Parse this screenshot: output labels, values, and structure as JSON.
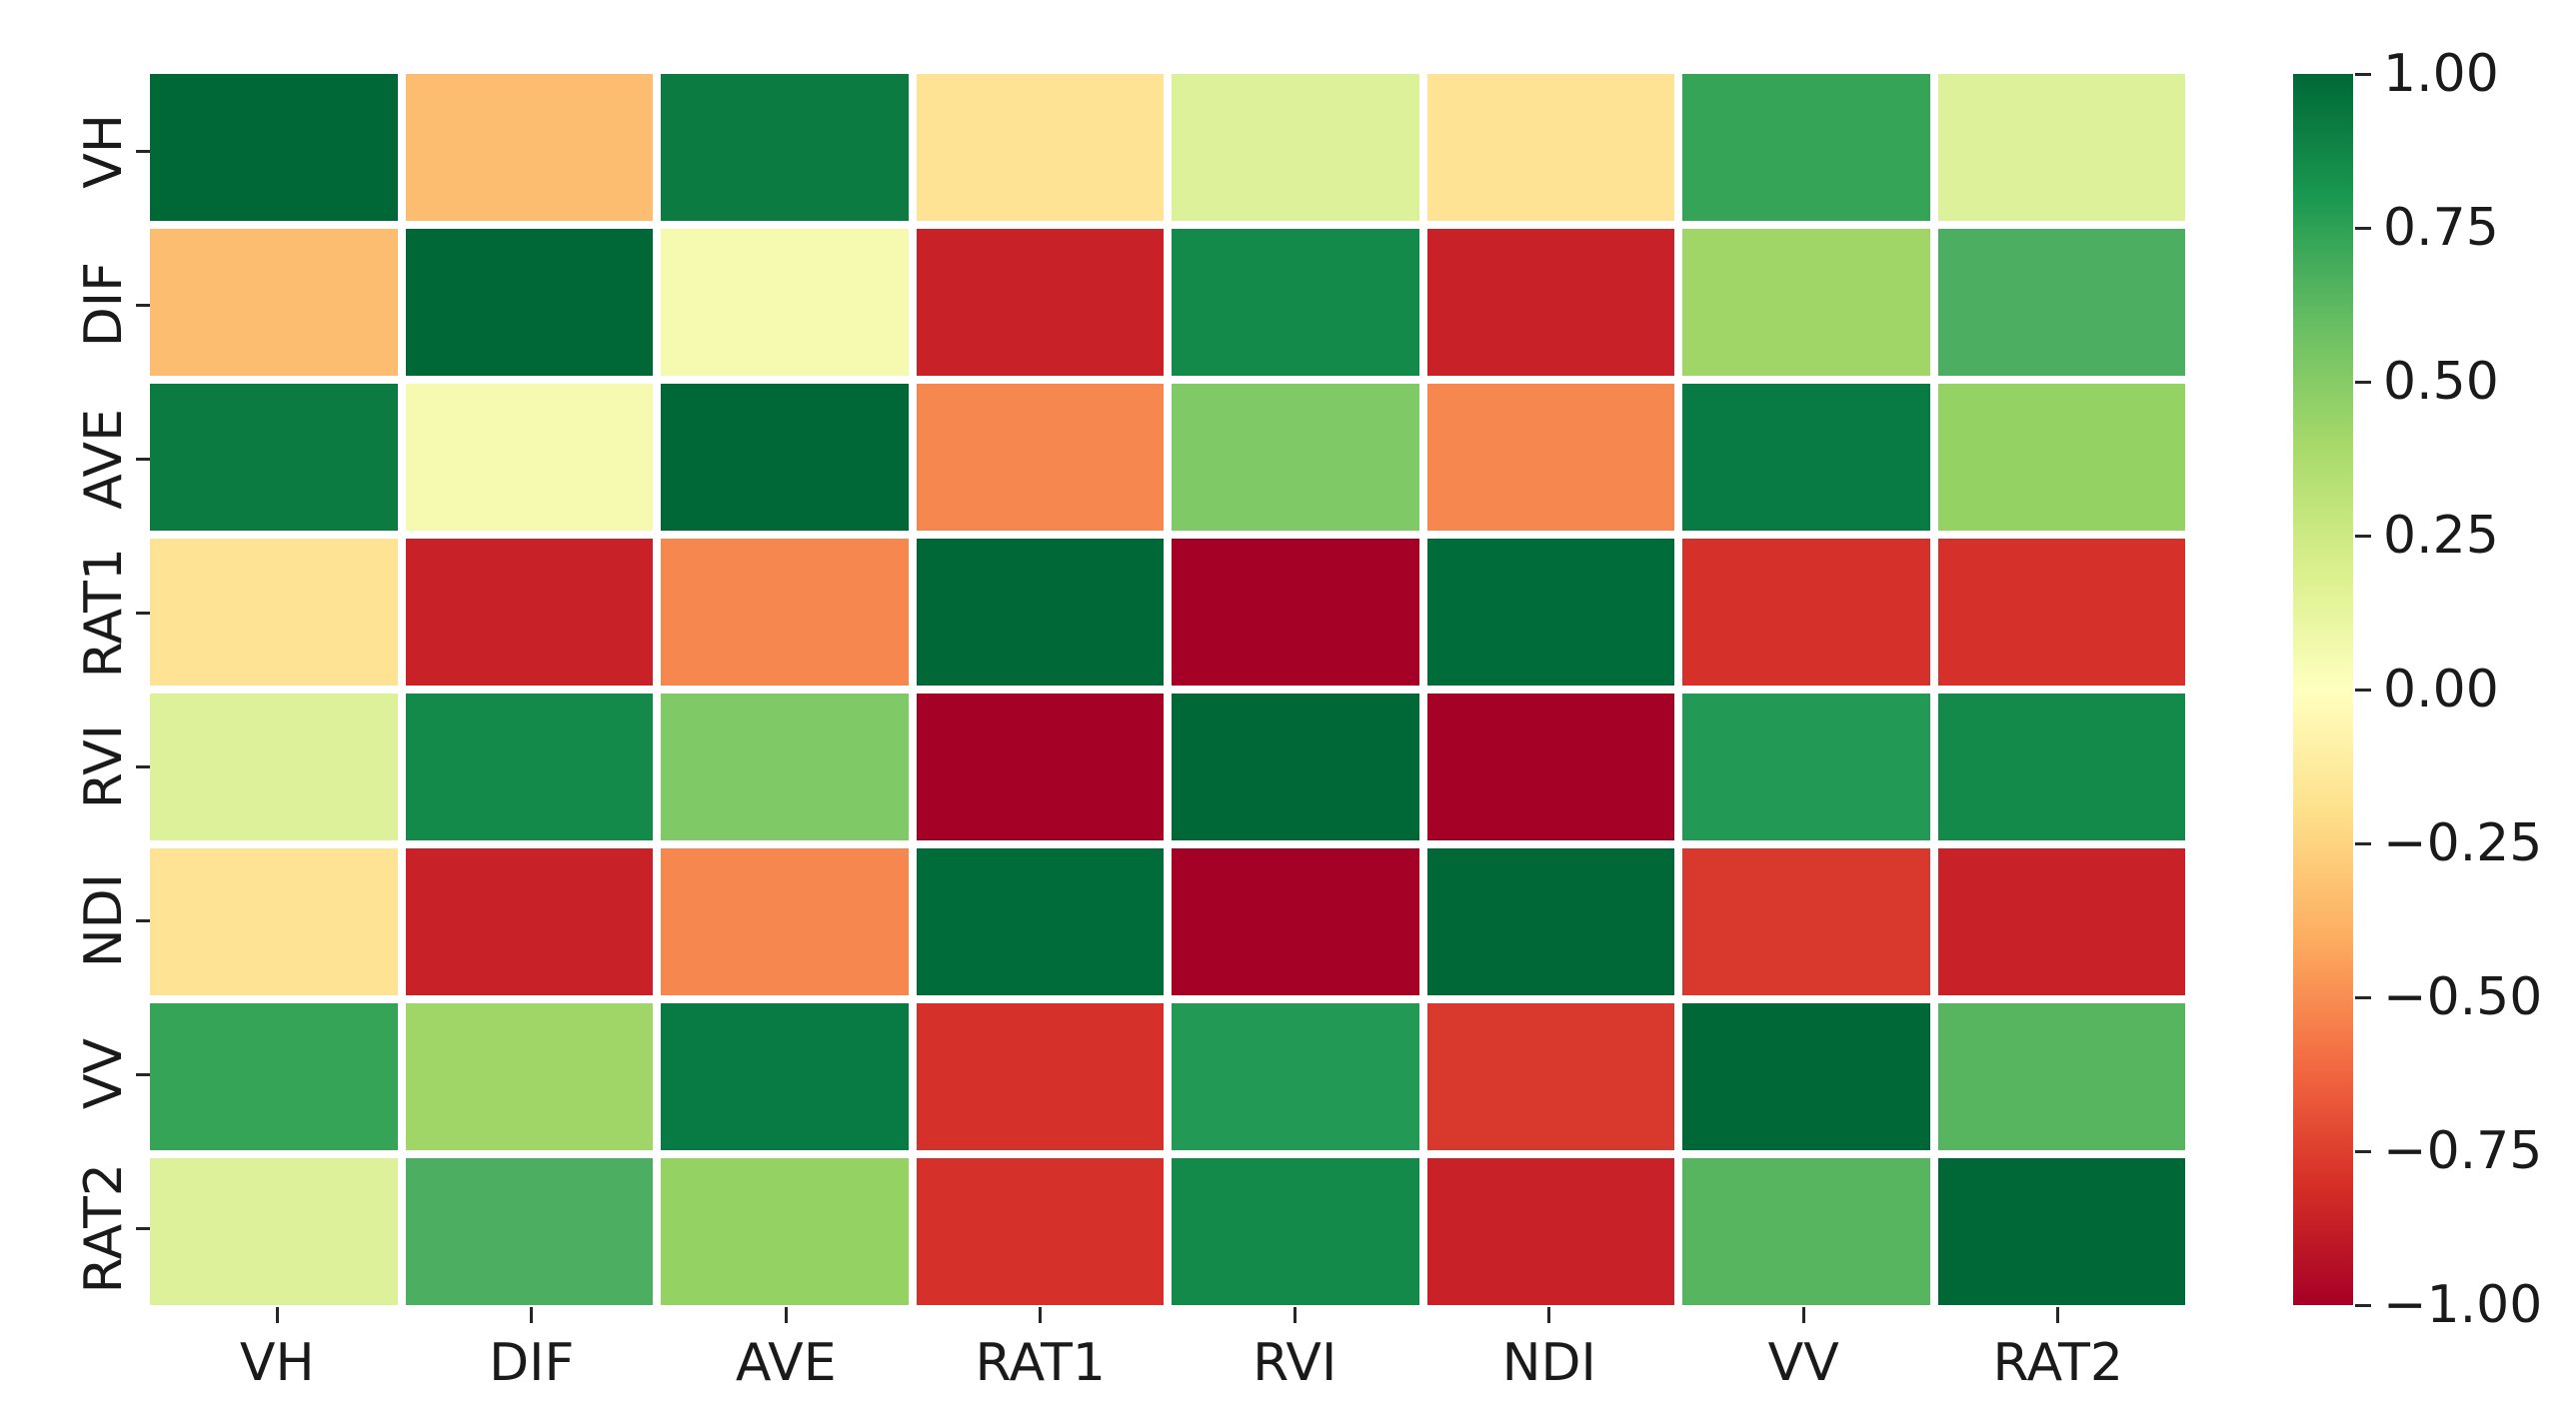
{
  "figure": {
    "background_color": "#ffffff",
    "text_color": "#1a1a1a",
    "tick_color": "#262626"
  },
  "chart_data": {
    "type": "heatmap",
    "title": "",
    "xlabel": "",
    "ylabel": "",
    "colormap": "RdYlGn",
    "grid": false,
    "legend_position": "colorbar-right",
    "categories": [
      "VH",
      "DIF",
      "AVE",
      "RAT1",
      "RVI",
      "NDI",
      "VV",
      "RAT2"
    ],
    "x_tick_labels": [
      "VH",
      "DIF",
      "AVE",
      "RAT1",
      "RVI",
      "NDI",
      "VV",
      "RAT2"
    ],
    "y_tick_labels": [
      "VH",
      "DIF",
      "AVE",
      "RAT1",
      "RVI",
      "NDI",
      "VV",
      "RAT2"
    ],
    "matrix": [
      [
        1.0,
        -0.35,
        0.9,
        -0.17,
        0.18,
        -0.17,
        0.7,
        0.2
      ],
      [
        -0.35,
        1.0,
        0.05,
        -0.85,
        0.85,
        -0.85,
        0.4,
        0.65
      ],
      [
        0.9,
        0.05,
        1.0,
        -0.5,
        0.5,
        -0.5,
        0.93,
        0.45
      ],
      [
        -0.17,
        -0.85,
        -0.5,
        1.0,
        -0.98,
        0.97,
        -0.8,
        -0.8
      ],
      [
        0.18,
        0.85,
        0.5,
        -0.98,
        1.0,
        -0.98,
        0.75,
        0.85
      ],
      [
        -0.17,
        -0.85,
        -0.5,
        0.97,
        -0.98,
        1.0,
        -0.73,
        -0.85
      ],
      [
        0.7,
        0.4,
        0.93,
        -0.8,
        0.75,
        -0.73,
        1.0,
        0.62
      ],
      [
        0.2,
        0.65,
        0.45,
        -0.8,
        0.85,
        -0.85,
        0.62,
        1.0
      ]
    ],
    "cell_colors": [
      [
        "#006837",
        "#fdbd71",
        "#0b7b41",
        "#fde393",
        "#ddf09a",
        "#fde393",
        "#35a456",
        "#ddf09a"
      ],
      [
        "#fdbd71",
        "#006837",
        "#f5fab0",
        "#c82127",
        "#148a4a",
        "#c82127",
        "#a0d667",
        "#4bae60"
      ],
      [
        "#0b7b41",
        "#f5fab0",
        "#006837",
        "#f6874f",
        "#7fc967",
        "#f6874f",
        "#087a44",
        "#95d264"
      ],
      [
        "#fde393",
        "#c82127",
        "#f6874f",
        "#006837",
        "#a50127",
        "#006c39",
        "#d5302a",
        "#d5302a"
      ],
      [
        "#ddf09a",
        "#148a4a",
        "#7fc967",
        "#a50127",
        "#006837",
        "#a50127",
        "#229955",
        "#148a4a"
      ],
      [
        "#fde393",
        "#c82127",
        "#f6874f",
        "#006c39",
        "#a50127",
        "#006837",
        "#d9392c",
        "#c82127"
      ],
      [
        "#35a456",
        "#a0d667",
        "#087a44",
        "#d5302a",
        "#229955",
        "#d9392c",
        "#006837",
        "#56b55e"
      ],
      [
        "#ddf09a",
        "#4bae60",
        "#95d264",
        "#d5302a",
        "#148a4a",
        "#c82127",
        "#56b55e",
        "#006837"
      ]
    ],
    "colorbar": {
      "vmin": -1.0,
      "vmax": 1.0,
      "tick_labels": [
        "1.00",
        "0.75",
        "0.50",
        "0.25",
        "0.00",
        "−0.25",
        "−0.50",
        "−0.75",
        "−1.00"
      ],
      "gradient_stops_top_to_bottom": [
        "#006837",
        "#1a9850",
        "#66bd63",
        "#a6d96a",
        "#d9ef8b",
        "#ffffbf",
        "#fee08b",
        "#fdae61",
        "#f46d43",
        "#d73027",
        "#a50026"
      ]
    }
  }
}
